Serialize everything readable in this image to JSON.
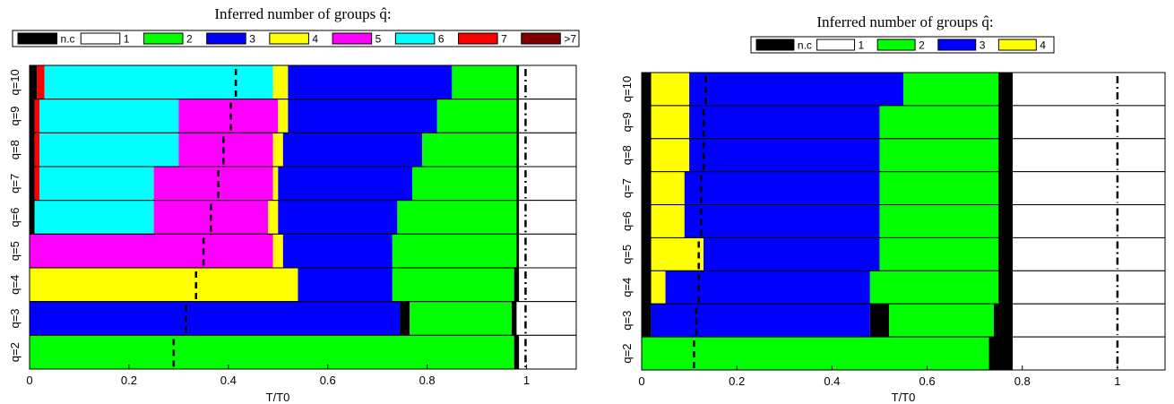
{
  "chart_data": [
    {
      "type": "area",
      "title": "Inferred number of groups q̂:",
      "xlabel": "T/T0",
      "xlim": [
        0,
        1.1
      ],
      "xticks": [
        "0",
        "0.2",
        "0.4",
        "0.6",
        "0.8",
        "1"
      ],
      "legend": {
        "placement": "top",
        "entries": [
          {
            "label": "n.c",
            "color": "#000000"
          },
          {
            "label": "1",
            "color": "#ffffff"
          },
          {
            "label": "2",
            "color": "#00ff00"
          },
          {
            "label": "3",
            "color": "#0000ff"
          },
          {
            "label": "4",
            "color": "#ffff00"
          },
          {
            "label": "5",
            "color": "#ff00ff"
          },
          {
            "label": "6",
            "color": "#00ffff"
          },
          {
            "label": "7",
            "color": "#ff0000"
          },
          {
            "label": ">7",
            "color": "#800000"
          }
        ]
      },
      "rows": [
        {
          "label": "q=10",
          "dashed_line": 0.415,
          "dashdot_line": 0.998,
          "segments": [
            {
              "state": "n.c",
              "to": 0.015
            },
            {
              "state": "7",
              "to": 0.03
            },
            {
              "state": "6",
              "to": 0.49
            },
            {
              "state": "4",
              "to": 0.52
            },
            {
              "state": "3",
              "to": 0.85
            },
            {
              "state": "2",
              "to": 0.98
            },
            {
              "state": "n.c",
              "to": 0.985
            },
            {
              "state": "1",
              "to": 1.1
            }
          ]
        },
        {
          "label": "q=9",
          "dashed_line": 0.405,
          "dashdot_line": 0.998,
          "segments": [
            {
              "state": "n.c",
              "to": 0.01
            },
            {
              "state": "7",
              "to": 0.02
            },
            {
              "state": "6",
              "to": 0.3
            },
            {
              "state": "5",
              "to": 0.5
            },
            {
              "state": "4",
              "to": 0.52
            },
            {
              "state": "3",
              "to": 0.82
            },
            {
              "state": "2",
              "to": 0.98
            },
            {
              "state": "n.c",
              "to": 0.985
            },
            {
              "state": "1",
              "to": 1.1
            }
          ]
        },
        {
          "label": "q=8",
          "dashed_line": 0.39,
          "dashdot_line": 0.998,
          "segments": [
            {
              "state": "n.c",
              "to": 0.01
            },
            {
              "state": "7",
              "to": 0.02
            },
            {
              "state": "6",
              "to": 0.3
            },
            {
              "state": "5",
              "to": 0.49
            },
            {
              "state": "4",
              "to": 0.51
            },
            {
              "state": "3",
              "to": 0.79
            },
            {
              "state": "2",
              "to": 0.98
            },
            {
              "state": "n.c",
              "to": 0.985
            },
            {
              "state": "1",
              "to": 1.1
            }
          ]
        },
        {
          "label": "q=7",
          "dashed_line": 0.38,
          "dashdot_line": 0.998,
          "segments": [
            {
              "state": "n.c",
              "to": 0.01
            },
            {
              "state": "7",
              "to": 0.02
            },
            {
              "state": "6",
              "to": 0.25
            },
            {
              "state": "5",
              "to": 0.49
            },
            {
              "state": "4",
              "to": 0.5
            },
            {
              "state": "3",
              "to": 0.77
            },
            {
              "state": "2",
              "to": 0.98
            },
            {
              "state": "n.c",
              "to": 0.985
            },
            {
              "state": "1",
              "to": 1.1
            }
          ]
        },
        {
          "label": "q=6",
          "dashed_line": 0.365,
          "dashdot_line": 0.998,
          "segments": [
            {
              "state": "n.c",
              "to": 0.01
            },
            {
              "state": "6",
              "to": 0.25
            },
            {
              "state": "5",
              "to": 0.48
            },
            {
              "state": "4",
              "to": 0.5
            },
            {
              "state": "3",
              "to": 0.74
            },
            {
              "state": "2",
              "to": 0.98
            },
            {
              "state": "n.c",
              "to": 0.985
            },
            {
              "state": "1",
              "to": 1.1
            }
          ]
        },
        {
          "label": "q=5",
          "dashed_line": 0.35,
          "dashdot_line": 0.998,
          "segments": [
            {
              "state": "5",
              "to": 0.49
            },
            {
              "state": "4",
              "to": 0.51
            },
            {
              "state": "3",
              "to": 0.73
            },
            {
              "state": "2",
              "to": 0.98
            },
            {
              "state": "n.c",
              "to": 0.985
            },
            {
              "state": "1",
              "to": 1.1
            }
          ]
        },
        {
          "label": "q=4",
          "dashed_line": 0.335,
          "dashdot_line": 0.998,
          "segments": [
            {
              "state": "4",
              "to": 0.54
            },
            {
              "state": "3",
              "to": 0.73
            },
            {
              "state": "2",
              "to": 0.975
            },
            {
              "state": "n.c",
              "to": 0.985
            },
            {
              "state": "1",
              "to": 1.1
            }
          ]
        },
        {
          "label": "q=3",
          "dashed_line": 0.315,
          "dashdot_line": 0.998,
          "segments": [
            {
              "state": "3",
              "to": 0.745
            },
            {
              "state": "n.c",
              "to": 0.765
            },
            {
              "state": "2",
              "to": 0.97
            },
            {
              "state": "n.c",
              "to": 0.98
            },
            {
              "state": "1",
              "to": 1.1
            }
          ]
        },
        {
          "label": "q=2",
          "dashed_line": 0.29,
          "dashdot_line": 0.998,
          "segments": [
            {
              "state": "2",
              "to": 0.975
            },
            {
              "state": "n.c",
              "to": 0.985
            },
            {
              "state": "1",
              "to": 1.1
            }
          ]
        }
      ]
    },
    {
      "type": "area",
      "title": "Inferred number of groups q̂:",
      "xlabel": "T/T0",
      "xlim": [
        0,
        1.1
      ],
      "xticks": [
        "0",
        "0.2",
        "0.4",
        "0.6",
        "0.8",
        "1"
      ],
      "legend": {
        "placement": "top",
        "entries": [
          {
            "label": "n.c",
            "color": "#000000"
          },
          {
            "label": "1",
            "color": "#ffffff"
          },
          {
            "label": "2",
            "color": "#00ff00"
          },
          {
            "label": "3",
            "color": "#0000ff"
          },
          {
            "label": "4",
            "color": "#ffff00"
          }
        ]
      },
      "rows": [
        {
          "label": "q=10",
          "dashed_line": 0.135,
          "dashdot_line": 1.0,
          "segments": [
            {
              "state": "n.c",
              "to": 0.02
            },
            {
              "state": "4",
              "to": 0.1
            },
            {
              "state": "3",
              "to": 0.55
            },
            {
              "state": "2",
              "to": 0.75
            },
            {
              "state": "n.c",
              "to": 0.78
            },
            {
              "state": "1",
              "to": 1.1
            }
          ]
        },
        {
          "label": "q=9",
          "dashed_line": 0.13,
          "dashdot_line": 1.0,
          "segments": [
            {
              "state": "n.c",
              "to": 0.02
            },
            {
              "state": "4",
              "to": 0.1
            },
            {
              "state": "3",
              "to": 0.5
            },
            {
              "state": "2",
              "to": 0.75
            },
            {
              "state": "n.c",
              "to": 0.78
            },
            {
              "state": "1",
              "to": 1.1
            }
          ]
        },
        {
          "label": "q=8",
          "dashed_line": 0.13,
          "dashdot_line": 1.0,
          "segments": [
            {
              "state": "n.c",
              "to": 0.02
            },
            {
              "state": "4",
              "to": 0.1
            },
            {
              "state": "3",
              "to": 0.5
            },
            {
              "state": "2",
              "to": 0.75
            },
            {
              "state": "n.c",
              "to": 0.78
            },
            {
              "state": "1",
              "to": 1.1
            }
          ]
        },
        {
          "label": "q=7",
          "dashed_line": 0.125,
          "dashdot_line": 1.0,
          "segments": [
            {
              "state": "n.c",
              "to": 0.02
            },
            {
              "state": "4",
              "to": 0.09
            },
            {
              "state": "3",
              "to": 0.5
            },
            {
              "state": "2",
              "to": 0.75
            },
            {
              "state": "n.c",
              "to": 0.78
            },
            {
              "state": "1",
              "to": 1.1
            }
          ]
        },
        {
          "label": "q=6",
          "dashed_line": 0.125,
          "dashdot_line": 1.0,
          "segments": [
            {
              "state": "n.c",
              "to": 0.02
            },
            {
              "state": "4",
              "to": 0.09
            },
            {
              "state": "3",
              "to": 0.5
            },
            {
              "state": "2",
              "to": 0.75
            },
            {
              "state": "n.c",
              "to": 0.78
            },
            {
              "state": "1",
              "to": 1.1
            }
          ]
        },
        {
          "label": "q=5",
          "dashed_line": 0.12,
          "dashdot_line": 1.0,
          "segments": [
            {
              "state": "n.c",
              "to": 0.02
            },
            {
              "state": "4",
              "to": 0.13
            },
            {
              "state": "3",
              "to": 0.5
            },
            {
              "state": "2",
              "to": 0.75
            },
            {
              "state": "n.c",
              "to": 0.78
            },
            {
              "state": "1",
              "to": 1.1
            }
          ]
        },
        {
          "label": "q=4",
          "dashed_line": 0.12,
          "dashdot_line": 1.0,
          "segments": [
            {
              "state": "n.c",
              "to": 0.02
            },
            {
              "state": "4",
              "to": 0.05
            },
            {
              "state": "3",
              "to": 0.48
            },
            {
              "state": "2",
              "to": 0.75
            },
            {
              "state": "n.c",
              "to": 0.78
            },
            {
              "state": "1",
              "to": 1.1
            }
          ]
        },
        {
          "label": "q=3",
          "dashed_line": 0.115,
          "dashdot_line": 1.0,
          "segments": [
            {
              "state": "n.c",
              "to": 0.02
            },
            {
              "state": "3",
              "to": 0.48
            },
            {
              "state": "n.c",
              "to": 0.52
            },
            {
              "state": "2",
              "to": 0.74
            },
            {
              "state": "n.c",
              "to": 0.78
            },
            {
              "state": "1",
              "to": 1.1
            }
          ]
        },
        {
          "label": "q=2",
          "dashed_line": 0.11,
          "dashdot_line": 1.0,
          "segments": [
            {
              "state": "2",
              "to": 0.73
            },
            {
              "state": "n.c",
              "to": 0.78
            },
            {
              "state": "1",
              "to": 1.1
            }
          ]
        }
      ]
    }
  ]
}
